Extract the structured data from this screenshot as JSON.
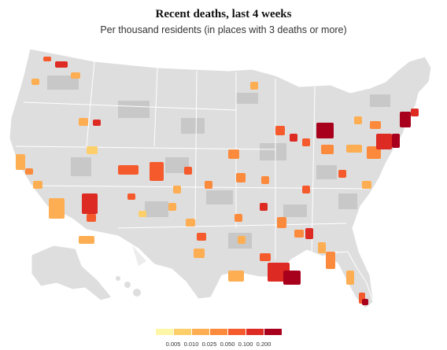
{
  "header": {
    "title": "Recent deaths, last 4 weeks",
    "subtitle": "Per thousand residents (in places with 3 deaths or more)"
  },
  "colors": {
    "land": "#dedede",
    "no_data_county": "#c8c8c8",
    "state_border": "#ffffff",
    "scale": [
      "#fff7a8",
      "#fdcf6b",
      "#fdae52",
      "#fb8a3c",
      "#f55a2c",
      "#dd2a22",
      "#a8001c"
    ]
  },
  "legend": {
    "labels": [
      "0.005",
      "0.010",
      "0.025",
      "0.050",
      "0.100",
      "0.200"
    ]
  }
}
